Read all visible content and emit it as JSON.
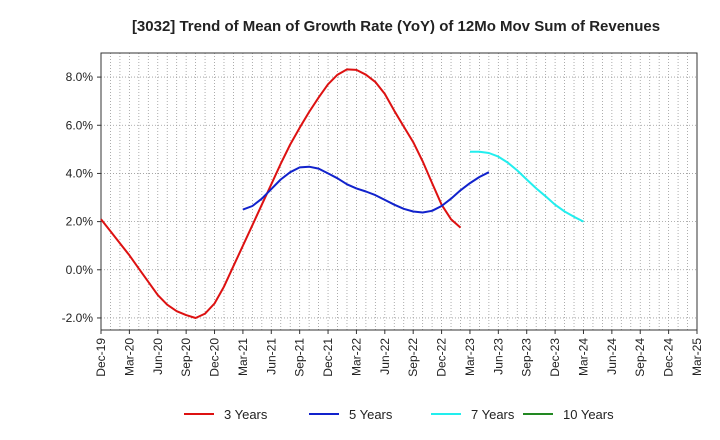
{
  "chart_data": {
    "type": "line",
    "title": "[3032]  Trend of Mean of Growth Rate (YoY) of 12Mo Mov Sum of Revenues",
    "xlabel": "",
    "ylabel": "",
    "ylim": [
      -2.5,
      9.0
    ],
    "yticks": [
      -2.0,
      0.0,
      2.0,
      4.0,
      6.0,
      8.0
    ],
    "ytick_labels": [
      "-2.0%",
      "0.0%",
      "2.0%",
      "4.0%",
      "6.0%",
      "8.0%"
    ],
    "x_tick_labels": [
      "Dec-19",
      "Mar-20",
      "Jun-20",
      "Sep-20",
      "Dec-20",
      "Mar-21",
      "Jun-21",
      "Sep-21",
      "Dec-21",
      "Mar-22",
      "Jun-22",
      "Sep-22",
      "Dec-22",
      "Mar-23",
      "Jun-23",
      "Sep-23",
      "Dec-23",
      "Mar-24",
      "Jun-24",
      "Sep-24",
      "Dec-24",
      "Mar-25"
    ],
    "grid": true,
    "legend_position": "bottom",
    "series": [
      {
        "name": "3 Years",
        "color": "#dd1111",
        "start_index": 0,
        "values": [
          2.1,
          1.6,
          1.1,
          0.6,
          0.05,
          -0.5,
          -1.05,
          -1.45,
          -1.72,
          -1.88,
          -2.0,
          -1.82,
          -1.4,
          -0.7,
          0.15,
          1.0,
          1.85,
          2.7,
          3.55,
          4.4,
          5.2,
          5.9,
          6.55,
          7.15,
          7.7,
          8.1,
          8.32,
          8.3,
          8.1,
          7.8,
          7.3,
          6.6,
          5.95,
          5.3,
          4.5,
          3.6,
          2.7,
          2.1,
          1.75
        ]
      },
      {
        "name": "5 Years",
        "color": "#1122cc",
        "start_index": 15,
        "values": [
          2.5,
          2.65,
          2.95,
          3.35,
          3.75,
          4.05,
          4.25,
          4.28,
          4.2,
          4.0,
          3.8,
          3.55,
          3.38,
          3.25,
          3.1,
          2.9,
          2.7,
          2.53,
          2.42,
          2.38,
          2.45,
          2.65,
          2.95,
          3.3,
          3.6,
          3.85,
          4.05
        ]
      },
      {
        "name": "7 Years",
        "color": "#22eeee",
        "start_index": 39,
        "values": [
          4.9,
          4.9,
          4.85,
          4.7,
          4.45,
          4.12,
          3.75,
          3.38,
          3.05,
          2.7,
          2.42,
          2.2,
          2.0
        ]
      },
      {
        "name": "10 Years",
        "color": "#228822",
        "start_index": 0,
        "values": []
      }
    ]
  }
}
